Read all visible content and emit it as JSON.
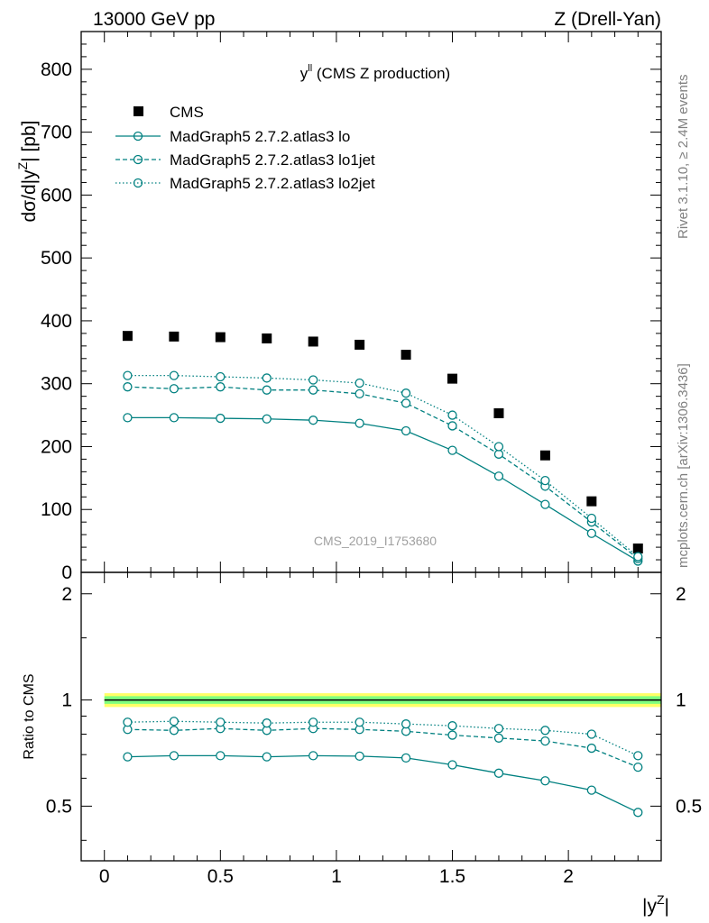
{
  "header": {
    "energy_label": "13000 GeV pp",
    "process_label": "Z (Drell-Yan)"
  },
  "side_labels": {
    "rivet": "Rivet 3.1.10, ≥ 2.4M events",
    "mcplots": "mcplots.cern.ch [arXiv:1306.3436]"
  },
  "colors": {
    "mc": "#008080",
    "data": "#000000",
    "band_inner": "#7fff7f",
    "band_outer": "#ffff66"
  },
  "chart_data": [
    {
      "type": "scatter",
      "title_main": "y",
      "title_sup": "ll",
      "title_rest": " (CMS Z production)",
      "watermark": "CMS_2019_I1753680",
      "ylabel": "dσ/d|y^Z| [pb]",
      "xlim": [
        -0.1,
        2.4
      ],
      "ylim": [
        0,
        860
      ],
      "yticks": [
        0,
        100,
        200,
        300,
        400,
        500,
        600,
        700,
        800
      ],
      "x": [
        0.1,
        0.3,
        0.5,
        0.7,
        0.9,
        1.1,
        1.3,
        1.5,
        1.7,
        1.9,
        2.1,
        2.3
      ],
      "legend": [
        "CMS",
        "MadGraph5 2.7.2.atlas3 lo",
        "MadGraph5 2.7.2.atlas3 lo1jet",
        "MadGraph5 2.7.2.atlas3 lo2jet"
      ],
      "series": [
        {
          "name": "CMS",
          "style": "square",
          "values": [
            376,
            375,
            374,
            372,
            367,
            362,
            346,
            308,
            253,
            186,
            113,
            38
          ]
        },
        {
          "name": "MadGraph5 2.7.2.atlas3 lo",
          "style": "solid",
          "values": [
            246,
            246,
            245,
            244,
            242,
            237,
            225,
            194,
            153,
            108,
            62,
            18
          ]
        },
        {
          "name": "MadGraph5 2.7.2.atlas3 lo1jet",
          "style": "dashed",
          "values": [
            295,
            292,
            295,
            290,
            290,
            284,
            269,
            233,
            188,
            137,
            80,
            22
          ]
        },
        {
          "name": "MadGraph5 2.7.2.atlas3 lo2jet",
          "style": "dotted",
          "values": [
            313,
            313,
            311,
            309,
            306,
            301,
            285,
            250,
            200,
            146,
            86,
            25
          ]
        }
      ]
    },
    {
      "type": "line",
      "ylabel": "Ratio to CMS",
      "xlabel_main": "|y",
      "xlabel_sup": "Z",
      "xlabel_end": "|",
      "xlim": [
        -0.1,
        2.4
      ],
      "ylim": [
        0.35,
        2.3
      ],
      "ylog": true,
      "yticks": [
        0.5,
        1,
        2
      ],
      "ytick_labels": [
        "0.5",
        "1",
        "2"
      ],
      "xticks": [
        0,
        0.5,
        1,
        1.5,
        2
      ],
      "xtick_labels": [
        "0",
        "0.5",
        "1",
        "1.5",
        "2"
      ],
      "band_inner": [
        0.975,
        1.025
      ],
      "band_outer": [
        0.955,
        1.045
      ],
      "x": [
        0.1,
        0.3,
        0.5,
        0.7,
        0.9,
        1.1,
        1.3,
        1.5,
        1.7,
        1.9,
        2.1,
        2.3
      ],
      "series": [
        {
          "name": "MadGraph5 2.7.2.atlas3 lo",
          "style": "solid",
          "values": [
            0.69,
            0.695,
            0.695,
            0.69,
            0.695,
            0.693,
            0.685,
            0.655,
            0.62,
            0.59,
            0.555,
            0.48
          ]
        },
        {
          "name": "MadGraph5 2.7.2.atlas3 lo1jet",
          "style": "dashed",
          "values": [
            0.825,
            0.82,
            0.83,
            0.82,
            0.83,
            0.825,
            0.815,
            0.795,
            0.78,
            0.765,
            0.73,
            0.645
          ]
        },
        {
          "name": "MadGraph5 2.7.2.atlas3 lo2jet",
          "style": "dotted",
          "values": [
            0.865,
            0.87,
            0.865,
            0.86,
            0.865,
            0.865,
            0.855,
            0.845,
            0.83,
            0.82,
            0.8,
            0.695
          ]
        }
      ]
    }
  ]
}
